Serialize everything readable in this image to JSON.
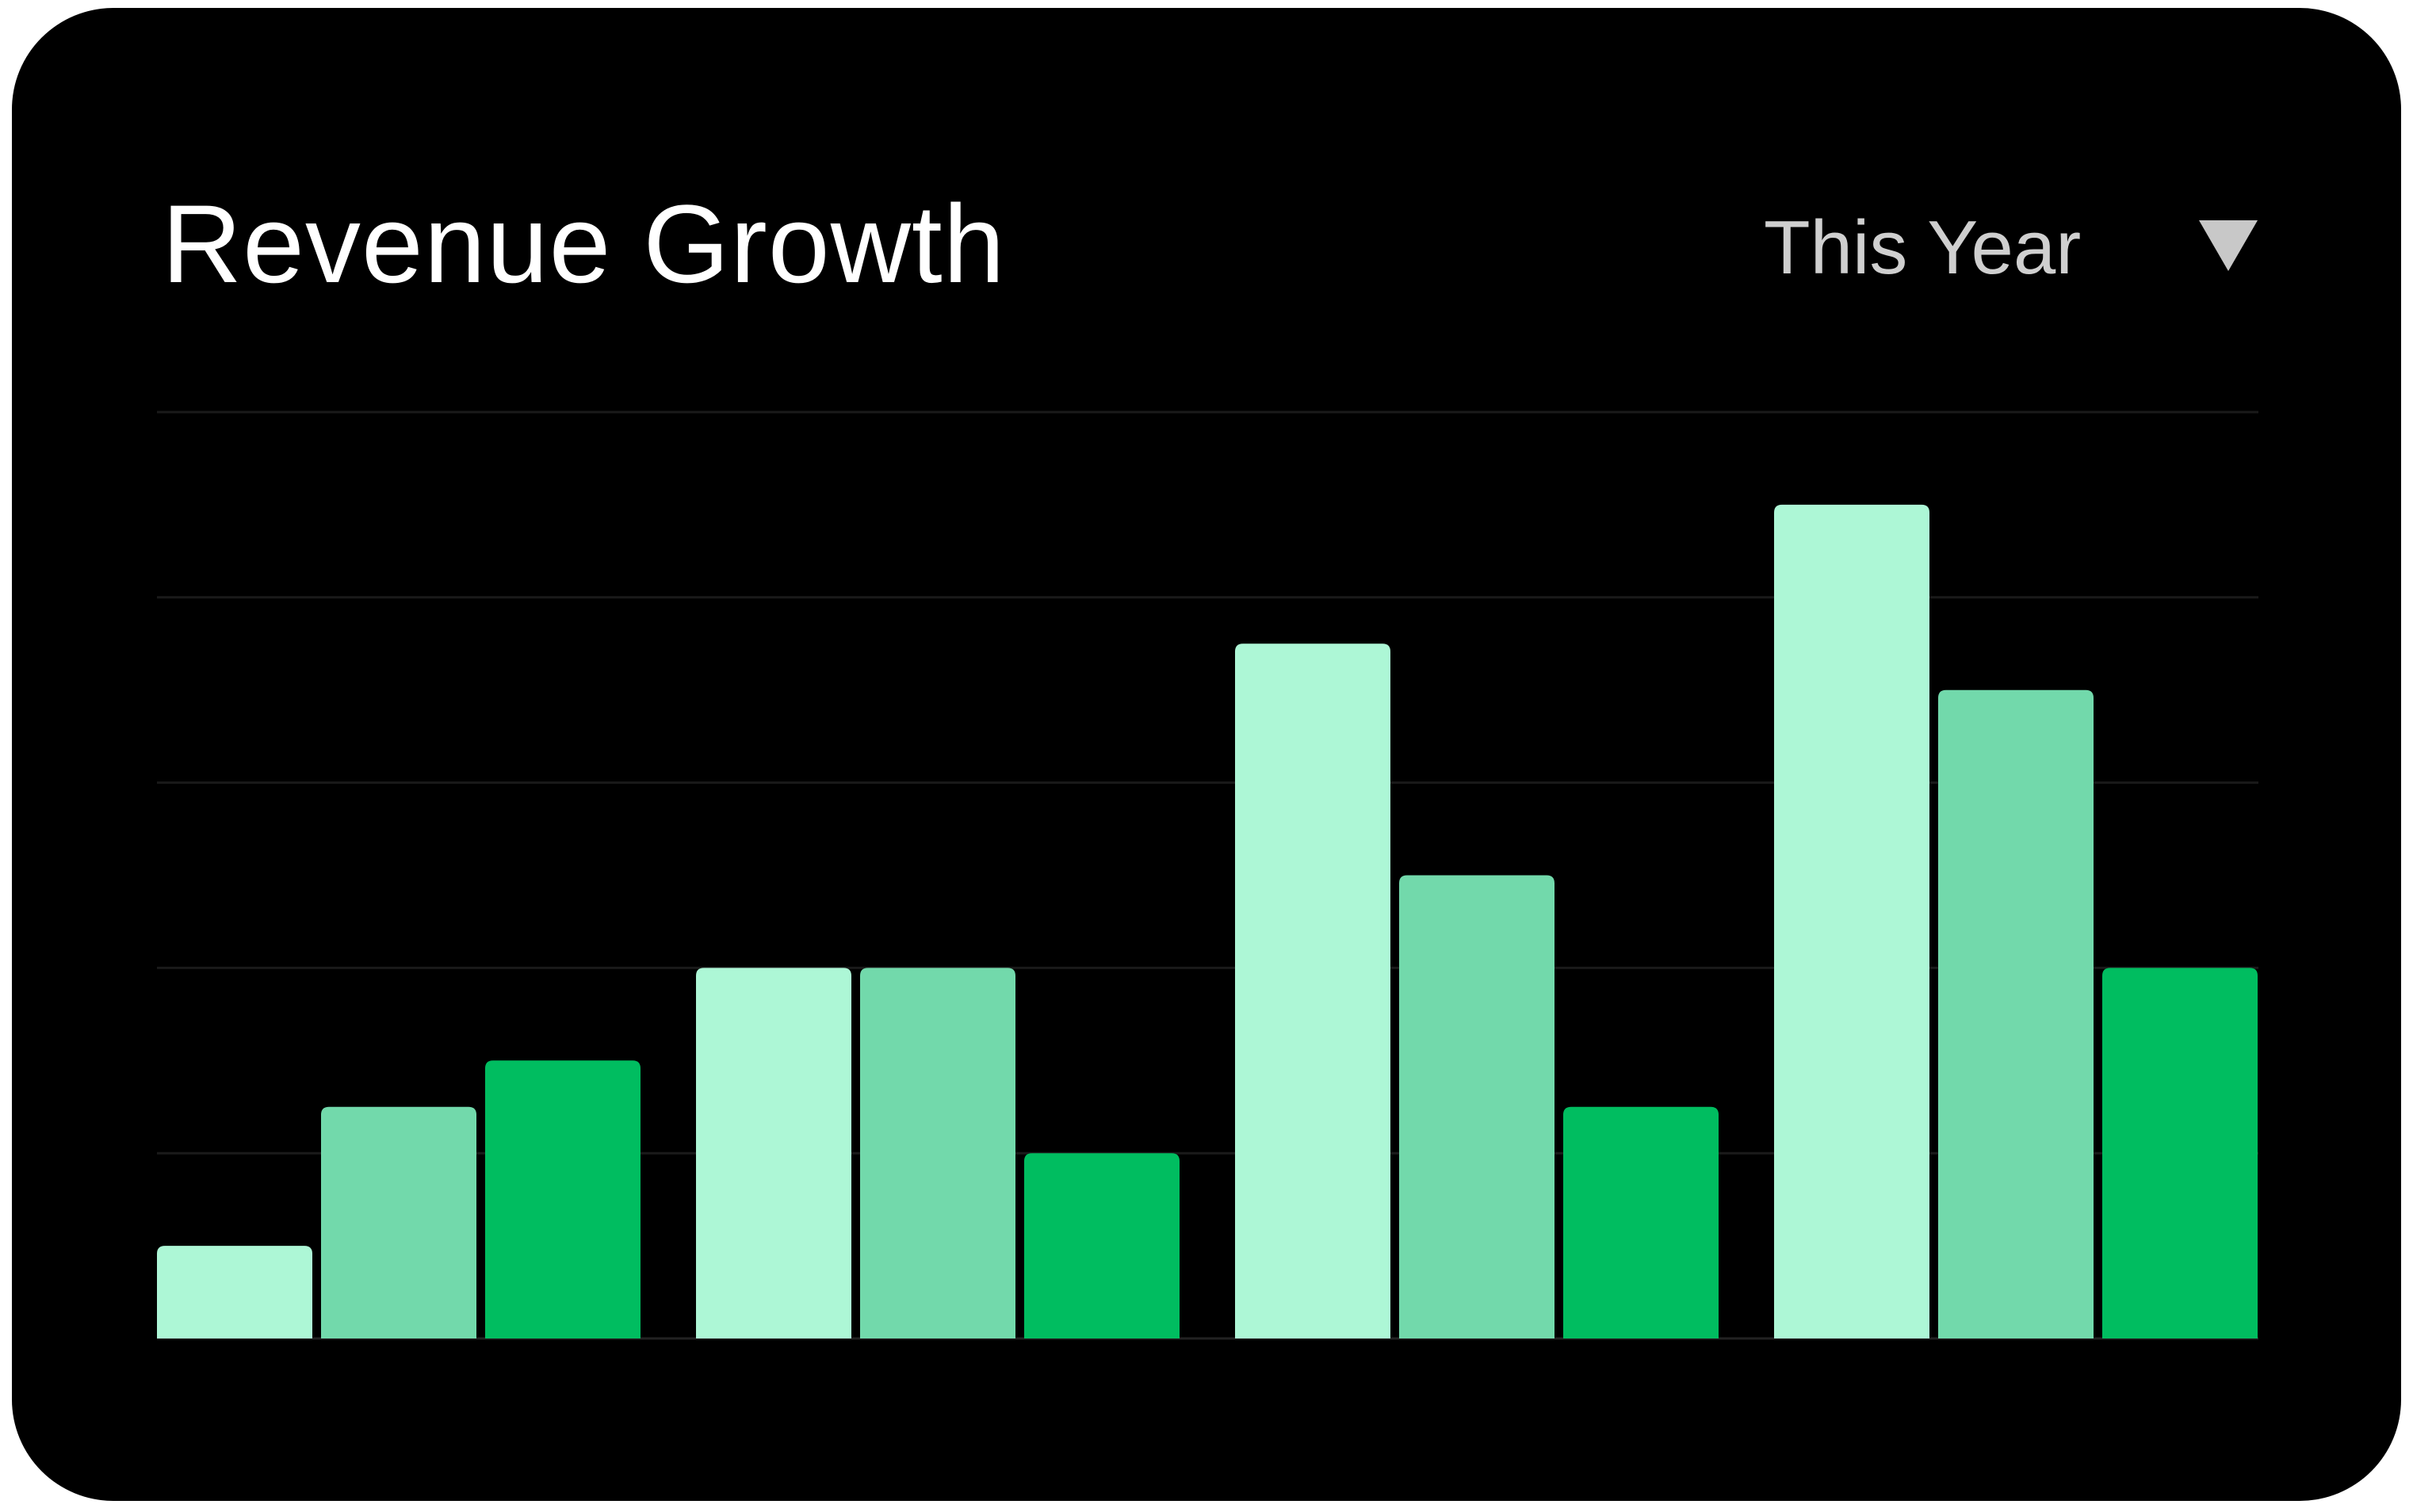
{
  "header": {
    "title": "Revenue Growth",
    "period_select": {
      "value": "This Year",
      "icon": "caret-down-icon"
    }
  },
  "colors": {
    "background": "#000000",
    "series": [
      "#adf7d6",
      "#72d9ab",
      "#00bd60"
    ],
    "grid": "#1a1a1a"
  },
  "chart_data": {
    "type": "bar",
    "grouped": true,
    "categories": [
      "",
      "",
      "",
      ""
    ],
    "series": [
      {
        "values": [
          2,
          8,
          15,
          18
        ]
      },
      {
        "values": [
          5,
          8,
          10,
          14
        ]
      },
      {
        "values": [
          6,
          4,
          5,
          8
        ]
      }
    ],
    "title": "Revenue Growth",
    "xlabel": "",
    "ylabel": "",
    "ylim": [
      0,
      20
    ],
    "grid": true,
    "legend": "none"
  }
}
